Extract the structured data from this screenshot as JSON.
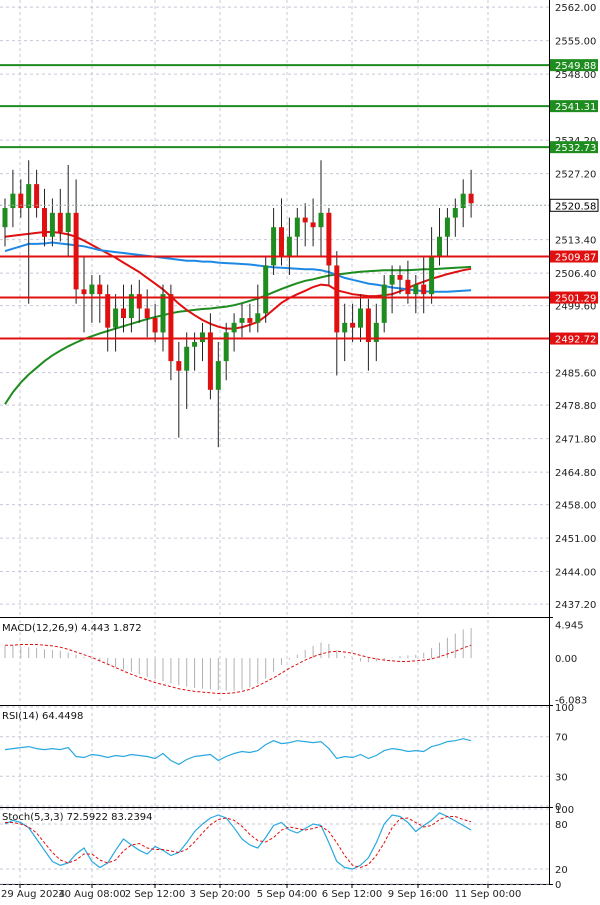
{
  "chart_data": {
    "type": "candlestick",
    "instrument_panel": {
      "y_ticks": [
        "2562.00",
        "2555.00",
        "2548.00",
        "2534.20",
        "2527.20",
        "2513.40",
        "2506.40",
        "2499.60",
        "2485.60",
        "2478.80",
        "2471.80",
        "2464.80",
        "2458.00",
        "2451.00",
        "2444.00",
        "2437.20"
      ],
      "y_range": [
        2434.5,
        2563.5
      ],
      "grid": true,
      "candles": [
        {
          "o": 2516,
          "h": 2522,
          "l": 2512,
          "c": 2520
        },
        {
          "o": 2520,
          "h": 2528,
          "l": 2516,
          "c": 2523
        },
        {
          "o": 2523,
          "h": 2526,
          "l": 2518,
          "c": 2520
        },
        {
          "o": 2520,
          "h": 2530,
          "l": 2500,
          "c": 2525
        },
        {
          "o": 2525,
          "h": 2528,
          "l": 2518,
          "c": 2520
        },
        {
          "o": 2520,
          "h": 2524,
          "l": 2512,
          "c": 2514
        },
        {
          "o": 2514,
          "h": 2522,
          "l": 2512,
          "c": 2519
        },
        {
          "o": 2519,
          "h": 2524,
          "l": 2513,
          "c": 2515
        },
        {
          "o": 2515,
          "h": 2529,
          "l": 2510,
          "c": 2519
        },
        {
          "o": 2519,
          "h": 2526,
          "l": 2500,
          "c": 2503
        },
        {
          "o": 2503,
          "h": 2510,
          "l": 2494,
          "c": 2502
        },
        {
          "o": 2502,
          "h": 2506,
          "l": 2496,
          "c": 2504
        },
        {
          "o": 2504,
          "h": 2506,
          "l": 2496,
          "c": 2502
        },
        {
          "o": 2502,
          "h": 2504,
          "l": 2490,
          "c": 2495
        },
        {
          "o": 2495,
          "h": 2502,
          "l": 2490,
          "c": 2499
        },
        {
          "o": 2499,
          "h": 2504,
          "l": 2494,
          "c": 2497
        },
        {
          "o": 2497,
          "h": 2504,
          "l": 2494,
          "c": 2502
        },
        {
          "o": 2502,
          "h": 2505,
          "l": 2496,
          "c": 2499
        },
        {
          "o": 2499,
          "h": 2503,
          "l": 2493,
          "c": 2497
        },
        {
          "o": 2497,
          "h": 2500,
          "l": 2492,
          "c": 2494
        },
        {
          "o": 2494,
          "h": 2504,
          "l": 2490,
          "c": 2502
        },
        {
          "o": 2502,
          "h": 2504,
          "l": 2484,
          "c": 2488
        },
        {
          "o": 2488,
          "h": 2492,
          "l": 2472,
          "c": 2486
        },
        {
          "o": 2486,
          "h": 2494,
          "l": 2478,
          "c": 2491
        },
        {
          "o": 2491,
          "h": 2494,
          "l": 2486,
          "c": 2492
        },
        {
          "o": 2492,
          "h": 2496,
          "l": 2488,
          "c": 2494
        },
        {
          "o": 2494,
          "h": 2498,
          "l": 2480,
          "c": 2482
        },
        {
          "o": 2482,
          "h": 2492,
          "l": 2470,
          "c": 2488
        },
        {
          "o": 2488,
          "h": 2496,
          "l": 2484,
          "c": 2494
        },
        {
          "o": 2494,
          "h": 2498,
          "l": 2490,
          "c": 2496
        },
        {
          "o": 2496,
          "h": 2500,
          "l": 2493,
          "c": 2497
        },
        {
          "o": 2497,
          "h": 2500,
          "l": 2494,
          "c": 2496
        },
        {
          "o": 2496,
          "h": 2504,
          "l": 2494,
          "c": 2498
        },
        {
          "o": 2498,
          "h": 2510,
          "l": 2496,
          "c": 2508
        },
        {
          "o": 2508,
          "h": 2520,
          "l": 2506,
          "c": 2516
        },
        {
          "o": 2516,
          "h": 2522,
          "l": 2508,
          "c": 2510
        },
        {
          "o": 2510,
          "h": 2518,
          "l": 2506,
          "c": 2514
        },
        {
          "o": 2514,
          "h": 2520,
          "l": 2510,
          "c": 2518
        },
        {
          "o": 2518,
          "h": 2521,
          "l": 2512,
          "c": 2517
        },
        {
          "o": 2517,
          "h": 2522,
          "l": 2512,
          "c": 2516
        },
        {
          "o": 2516,
          "h": 2530,
          "l": 2510,
          "c": 2519
        },
        {
          "o": 2519,
          "h": 2520,
          "l": 2504,
          "c": 2508
        },
        {
          "o": 2508,
          "h": 2511,
          "l": 2485,
          "c": 2494
        },
        {
          "o": 2494,
          "h": 2500,
          "l": 2488,
          "c": 2496
        },
        {
          "o": 2496,
          "h": 2500,
          "l": 2492,
          "c": 2495
        },
        {
          "o": 2495,
          "h": 2502,
          "l": 2492,
          "c": 2499
        },
        {
          "o": 2499,
          "h": 2501,
          "l": 2486,
          "c": 2492
        },
        {
          "o": 2492,
          "h": 2500,
          "l": 2488,
          "c": 2496
        },
        {
          "o": 2496,
          "h": 2506,
          "l": 2494,
          "c": 2504
        },
        {
          "o": 2504,
          "h": 2508,
          "l": 2498,
          "c": 2506
        },
        {
          "o": 2506,
          "h": 2508,
          "l": 2502,
          "c": 2505
        },
        {
          "o": 2505,
          "h": 2509,
          "l": 2500,
          "c": 2502
        },
        {
          "o": 2502,
          "h": 2506,
          "l": 2498,
          "c": 2504
        },
        {
          "o": 2504,
          "h": 2510,
          "l": 2498,
          "c": 2502
        },
        {
          "o": 2502,
          "h": 2516,
          "l": 2500,
          "c": 2510
        },
        {
          "o": 2510,
          "h": 2520,
          "l": 2508,
          "c": 2514
        },
        {
          "o": 2514,
          "h": 2520,
          "l": 2510,
          "c": 2518
        },
        {
          "o": 2518,
          "h": 2522,
          "l": 2514,
          "c": 2520
        },
        {
          "o": 2520,
          "h": 2526,
          "l": 2516,
          "c": 2523
        },
        {
          "o": 2523,
          "h": 2528,
          "l": 2518,
          "c": 2521
        }
      ],
      "ma_blue": [
        2511,
        2511.5,
        2512,
        2512.5,
        2512.5,
        2512.6,
        2512.8,
        2512.6,
        2512.4,
        2512.2,
        2512,
        2511.6,
        2511.2,
        2511,
        2510.8,
        2510.6,
        2510.4,
        2510.2,
        2510,
        2509.8,
        2509.6,
        2509.4,
        2509.2,
        2509,
        2509,
        2508.8,
        2508.8,
        2508.6,
        2508.5,
        2508.4,
        2508.3,
        2508.2,
        2508,
        2507.8,
        2507.6,
        2507.5,
        2507.4,
        2507.3,
        2507.2,
        2507.2,
        2507,
        2506.6,
        2506,
        2505.4,
        2505,
        2504.6,
        2504.2,
        2504,
        2503.7,
        2503.4,
        2503.2,
        2503,
        2502.8,
        2502.6,
        2502.5,
        2502.5,
        2502.5,
        2502.6,
        2502.7,
        2502.8
      ],
      "ma_red": [
        2514,
        2514.2,
        2514.4,
        2514.6,
        2514.8,
        2515,
        2515,
        2514.8,
        2514.5,
        2514,
        2513.2,
        2512.3,
        2511.4,
        2510.5,
        2509.6,
        2508.6,
        2507.6,
        2506.6,
        2505.4,
        2504.2,
        2503,
        2501.5,
        2500,
        2498.7,
        2497.6,
        2496.6,
        2495.8,
        2495.2,
        2494.8,
        2494.8,
        2495.1,
        2495.6,
        2496.2,
        2497.4,
        2498.8,
        2500.2,
        2501.2,
        2502,
        2502.7,
        2503.5,
        2504,
        2503.8,
        2502.8,
        2502.4,
        2502,
        2501.8,
        2501.6,
        2501.6,
        2501.8,
        2502,
        2502.6,
        2503.3,
        2504,
        2504.6,
        2505.2,
        2505.7,
        2506.2,
        2506.6,
        2507,
        2507.3
      ],
      "ma_green": [
        2479,
        2481.5,
        2483.5,
        2485.2,
        2486.6,
        2488,
        2489.2,
        2490.2,
        2491.1,
        2491.9,
        2492.6,
        2493.2,
        2493.8,
        2494.3,
        2494.8,
        2495.3,
        2495.8,
        2496.3,
        2496.8,
        2497.2,
        2497.6,
        2498,
        2498.3,
        2498.5,
        2498.7,
        2498.9,
        2499,
        2499.2,
        2499.4,
        2499.7,
        2500.1,
        2500.6,
        2501.1,
        2501.7,
        2502.4,
        2503.1,
        2503.7,
        2504.3,
        2504.8,
        2505.1,
        2505.5,
        2505.9,
        2506.1,
        2506.3,
        2506.5,
        2506.7,
        2506.8,
        2506.9,
        2507,
        2507,
        2507,
        2507,
        2507.1,
        2507.2,
        2507.2,
        2507.3,
        2507.4,
        2507.5,
        2507.6,
        2507.7
      ],
      "levels": [
        {
          "value": 2549.88,
          "label": "2549.88",
          "color": "#1e8c1e",
          "text_color": "#000000"
        },
        {
          "value": 2541.31,
          "label": "2541.31",
          "color": "#1e8c1e",
          "text_color": "#000000"
        },
        {
          "value": 2532.73,
          "label": "2532.73",
          "color": "#1e8c1e",
          "text_color": "#000000"
        },
        {
          "value": 2509.87,
          "label": "2509.87",
          "color": "#e01010",
          "text_color": "#000000"
        },
        {
          "value": 2501.29,
          "label": "2501.29",
          "color": "#e01010",
          "text_color": "#000000"
        },
        {
          "value": 2492.72,
          "label": "2492.72",
          "color": "#e01010",
          "text_color": "#000000"
        }
      ],
      "current_price": {
        "value": 2520.58,
        "label": "2520.58"
      }
    },
    "macd_panel": {
      "label": "MACD(12,26,9) 4.443 1.872",
      "y_ticks": [
        "4.945",
        "0.00",
        "-6.083"
      ],
      "y_range": [
        -6.6,
        5.6
      ],
      "histogram": [
        1.8,
        1.8,
        1.7,
        1.6,
        1.5,
        1.3,
        1.2,
        1.1,
        0.8,
        0.5,
        0.2,
        -0.2,
        -0.5,
        -0.9,
        -1.3,
        -1.7,
        -2.0,
        -2.4,
        -2.8,
        -3.1,
        -3.4,
        -3.7,
        -4.0,
        -4.2,
        -4.4,
        -4.5,
        -4.6,
        -4.7,
        -4.8,
        -4.8,
        -4.6,
        -4.3,
        -3.8,
        -3.0,
        -2.0,
        -1.0,
        -0.2,
        0.5,
        1.2,
        1.8,
        2.3,
        2.1,
        1.2,
        0.3,
        -0.2,
        -0.5,
        -0.6,
        -0.5,
        -0.2,
        0.1,
        0.3,
        0.4,
        0.5,
        0.8,
        1.5,
        2.3,
        3.0,
        3.6,
        4.2,
        4.4
      ],
      "signal": [
        1.9,
        1.9,
        2.0,
        2.0,
        2.0,
        1.9,
        1.8,
        1.6,
        1.3,
        0.9,
        0.5,
        0.1,
        -0.4,
        -0.9,
        -1.4,
        -1.9,
        -2.4,
        -2.8,
        -3.2,
        -3.6,
        -3.9,
        -4.2,
        -4.5,
        -4.7,
        -4.9,
        -5.0,
        -5.1,
        -5.2,
        -5.2,
        -5.1,
        -4.9,
        -4.6,
        -4.1,
        -3.5,
        -2.9,
        -2.2,
        -1.5,
        -0.9,
        -0.3,
        0.2,
        0.6,
        0.9,
        1.0,
        0.9,
        0.7,
        0.4,
        0.1,
        -0.1,
        -0.3,
        -0.4,
        -0.5,
        -0.5,
        -0.4,
        -0.3,
        -0.1,
        0.2,
        0.6,
        1.0,
        1.5,
        1.9
      ]
    },
    "rsi_panel": {
      "label": "RSI(14) 64.4498",
      "y_ticks": [
        "100",
        "70",
        "30",
        "0"
      ],
      "y_range": [
        0,
        100
      ],
      "values": [
        57,
        58,
        59,
        60,
        58,
        57,
        58,
        57,
        59,
        50,
        49,
        52,
        51,
        49,
        51,
        50,
        52,
        51,
        50,
        48,
        53,
        46,
        42,
        47,
        50,
        51,
        52,
        46,
        50,
        53,
        55,
        54,
        56,
        62,
        66,
        63,
        64,
        66,
        65,
        64,
        65,
        58,
        48,
        50,
        49,
        52,
        48,
        51,
        56,
        58,
        57,
        55,
        56,
        55,
        60,
        62,
        65,
        66,
        68,
        66
      ]
    },
    "stoch_panel": {
      "label": "Stoch(5,3,3) 72.5922 83.2394",
      "y_ticks": [
        "100",
        "80",
        "20",
        "0"
      ],
      "y_range": [
        0,
        100
      ],
      "k": [
        80,
        85,
        82,
        75,
        60,
        45,
        30,
        25,
        28,
        40,
        48,
        30,
        22,
        28,
        45,
        60,
        52,
        45,
        40,
        50,
        45,
        38,
        42,
        55,
        70,
        80,
        88,
        92,
        88,
        75,
        60,
        52,
        48,
        62,
        78,
        82,
        72,
        68,
        74,
        80,
        78,
        55,
        30,
        22,
        20,
        25,
        35,
        55,
        80,
        92,
        90,
        82,
        70,
        78,
        85,
        95,
        90,
        84,
        78,
        72
      ],
      "d": [
        82,
        82,
        80,
        76,
        68,
        55,
        42,
        32,
        28,
        32,
        40,
        40,
        32,
        28,
        32,
        44,
        52,
        54,
        48,
        46,
        46,
        44,
        42,
        46,
        56,
        68,
        79,
        86,
        88,
        85,
        77,
        66,
        58,
        56,
        62,
        72,
        76,
        74,
        72,
        74,
        77,
        70,
        55,
        38,
        25,
        22,
        26,
        38,
        55,
        75,
        87,
        88,
        82,
        76,
        78,
        86,
        90,
        90,
        86,
        83
      ]
    },
    "x_labels": [
      "29 Aug 2024",
      "30 Aug 08:00",
      "2 Sep 12:00",
      "3 Sep 20:00",
      "5 Sep 04:00",
      "6 Sep 12:00",
      "9 Sep 16:00",
      "11 Sep 00:00"
    ],
    "colors": {
      "bull": "#1e8c1e",
      "bear": "#e01010",
      "ma_blue": "#1e88e5",
      "ma_red": "#e01010",
      "ma_green": "#1e8c1e",
      "macd_hist": "#b0b0b0",
      "macd_signal": "#e01010",
      "rsi": "#29a8e0",
      "stoch_k": "#29a8e0",
      "stoch_d": "#e01010",
      "grid": "#c8c8d8"
    }
  }
}
